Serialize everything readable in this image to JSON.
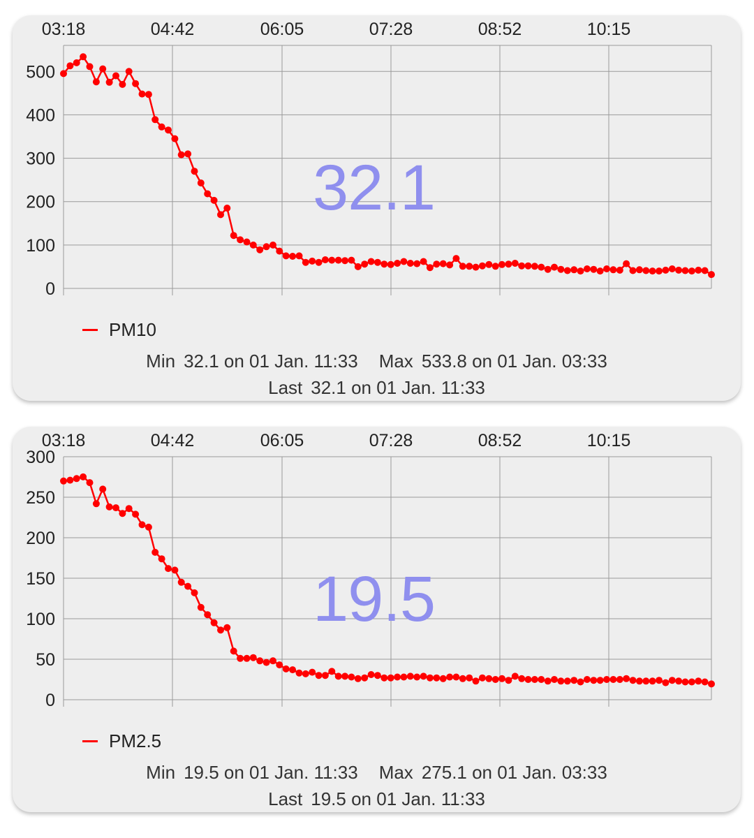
{
  "colors": {
    "series": "#ff0000",
    "big_value": "#8f8fee",
    "card": "#eeeeee",
    "grid": "#9a9a9a"
  },
  "charts": [
    {
      "id": "pm10",
      "big_value": "32.1",
      "legend": "PM10",
      "stats": {
        "min_label": "Min",
        "min_value": "32.1 on 01 Jan. 11:33",
        "max_label": "Max",
        "max_value": "533.8 on 01 Jan. 03:33",
        "last_label": "Last",
        "last_value": "32.1 on 01 Jan. 11:33"
      }
    },
    {
      "id": "pm25",
      "big_value": "19.5",
      "legend": "PM2.5",
      "stats": {
        "min_label": "Min",
        "min_value": "19.5 on 01 Jan. 11:33",
        "max_label": "Max",
        "max_value": "275.1 on 01 Jan. 03:33",
        "last_label": "Last",
        "last_value": "19.5 on 01 Jan. 11:33"
      }
    }
  ],
  "chart_data": [
    {
      "type": "line",
      "series": [
        {
          "name": "PM10",
          "values": [
            495,
            513,
            520,
            533.8,
            511,
            476,
            506,
            475,
            490,
            470,
            500,
            472,
            448,
            447,
            389,
            372,
            365,
            345,
            308,
            310,
            270,
            243,
            218,
            203,
            170,
            185,
            122,
            112,
            107,
            100,
            89,
            96,
            100,
            86,
            75,
            74,
            75,
            60,
            63,
            60,
            66,
            65,
            65,
            64,
            65,
            50,
            56,
            62,
            60,
            56,
            55,
            58,
            62,
            58,
            57,
            62,
            48,
            56,
            57,
            54,
            69,
            51,
            51,
            49,
            52,
            55,
            51,
            55,
            56,
            58,
            52,
            52,
            51,
            49,
            44,
            49,
            44,
            41,
            43,
            40,
            45,
            44,
            40,
            45,
            43,
            42,
            57,
            41,
            43,
            41,
            40,
            40,
            42,
            45,
            42,
            41,
            40,
            42,
            41,
            32.1
          ]
        }
      ],
      "x_tick_labels": [
        "03:18",
        "04:42",
        "06:05",
        "07:28",
        "08:52",
        "10:15"
      ],
      "y_ticks": [
        0,
        100,
        200,
        300,
        400,
        500
      ],
      "ylim": [
        0,
        560
      ],
      "grid": true,
      "legend_position": "bottom-left"
    },
    {
      "type": "line",
      "series": [
        {
          "name": "PM2.5",
          "values": [
            270,
            271,
            273,
            275.1,
            268,
            242,
            260,
            238,
            237,
            230,
            236,
            229,
            216,
            213,
            182,
            174,
            162,
            160,
            145,
            140,
            132,
            114,
            105,
            95,
            86,
            89,
            60,
            51,
            51,
            52,
            48,
            46,
            48,
            43,
            38,
            37,
            33,
            32,
            34,
            30,
            30,
            35,
            29,
            29,
            28,
            26,
            27,
            31,
            30,
            27,
            27,
            28,
            28,
            29,
            28,
            29,
            27,
            27,
            26,
            28,
            28,
            26,
            27,
            23,
            27,
            26,
            25,
            26,
            24,
            29,
            26,
            25,
            25,
            25,
            23,
            25,
            23,
            23,
            24,
            22,
            25,
            24,
            24,
            25,
            25,
            25,
            26,
            24,
            23,
            23,
            23,
            24,
            21,
            24,
            23,
            22,
            22,
            23,
            22,
            19.5
          ]
        }
      ],
      "x_tick_labels": [
        "03:18",
        "04:42",
        "06:05",
        "07:28",
        "08:52",
        "10:15"
      ],
      "y_ticks": [
        0,
        50,
        100,
        150,
        200,
        250,
        300
      ],
      "ylim": [
        0,
        300
      ],
      "grid": true,
      "legend_position": "bottom-left"
    }
  ]
}
